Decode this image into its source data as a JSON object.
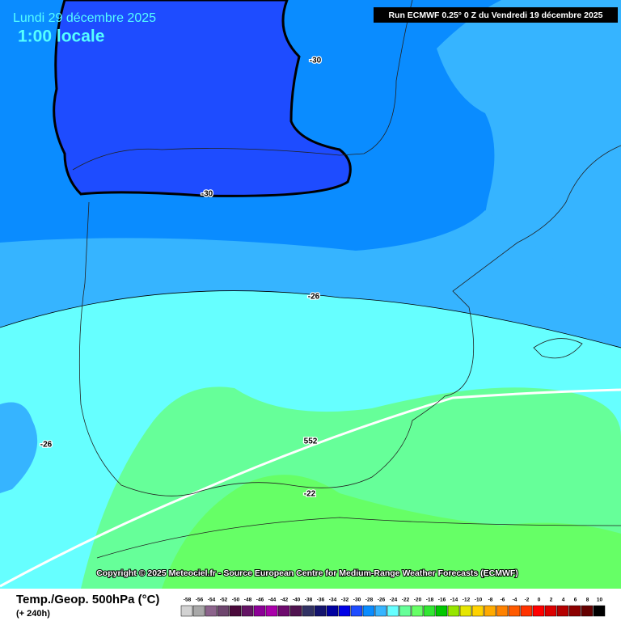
{
  "header": {
    "date": "Lundi 29 décembre 2025",
    "time": "1:00 locale",
    "run": "Run ECMWF 0.25° 0 Z du Vendredi 19 décembre 2025"
  },
  "map": {
    "contour_labels": [
      "-30",
      "-30",
      "-26",
      "-26",
      "552",
      "-22"
    ],
    "copyright": "Copyright © 2025 Meteociel.fr - Source European Centre for Medium-Range Weather Forecasts (ECMWF)"
  },
  "footer": {
    "title": "Temp./Geop. 500hPa (°C)",
    "lead": "(+ 240h)",
    "legend": [
      {
        "label": "-58",
        "color": "#d2d2d2"
      },
      {
        "label": "-56",
        "color": "#a8a8a8"
      },
      {
        "label": "-54",
        "color": "#8c648c"
      },
      {
        "label": "-52",
        "color": "#6e466e"
      },
      {
        "label": "-50",
        "color": "#4b0a3c"
      },
      {
        "label": "-48",
        "color": "#641464"
      },
      {
        "label": "-46",
        "color": "#8c0096"
      },
      {
        "label": "-44",
        "color": "#aa00aa"
      },
      {
        "label": "-42",
        "color": "#6e0a6e"
      },
      {
        "label": "-40",
        "color": "#501450"
      },
      {
        "label": "-38",
        "color": "#323264"
      },
      {
        "label": "-36",
        "color": "#14146e"
      },
      {
        "label": "-34",
        "color": "#0000a0"
      },
      {
        "label": "-32",
        "color": "#0000e6"
      },
      {
        "label": "-30",
        "color": "#1e4cff"
      },
      {
        "label": "-28",
        "color": "#0a8cff"
      },
      {
        "label": "-26",
        "color": "#36b4ff"
      },
      {
        "label": "-24",
        "color": "#66ffff"
      },
      {
        "label": "-22",
        "color": "#66ff99"
      },
      {
        "label": "-20",
        "color": "#66ff66"
      },
      {
        "label": "-18",
        "color": "#32e632"
      },
      {
        "label": "-16",
        "color": "#00c800"
      },
      {
        "label": "-14",
        "color": "#96e600"
      },
      {
        "label": "-12",
        "color": "#e6e600"
      },
      {
        "label": "-10",
        "color": "#ffd200"
      },
      {
        "label": "-8",
        "color": "#ffaa00"
      },
      {
        "label": "-6",
        "color": "#ff8200"
      },
      {
        "label": "-4",
        "color": "#ff5a00"
      },
      {
        "label": "-2",
        "color": "#ff3200"
      },
      {
        "label": "0",
        "color": "#ff0000"
      },
      {
        "label": "2",
        "color": "#dc0000"
      },
      {
        "label": "4",
        "color": "#b40000"
      },
      {
        "label": "6",
        "color": "#8c0000"
      },
      {
        "label": "8",
        "color": "#640000"
      },
      {
        "label": "10",
        "color": "#000000"
      }
    ]
  }
}
